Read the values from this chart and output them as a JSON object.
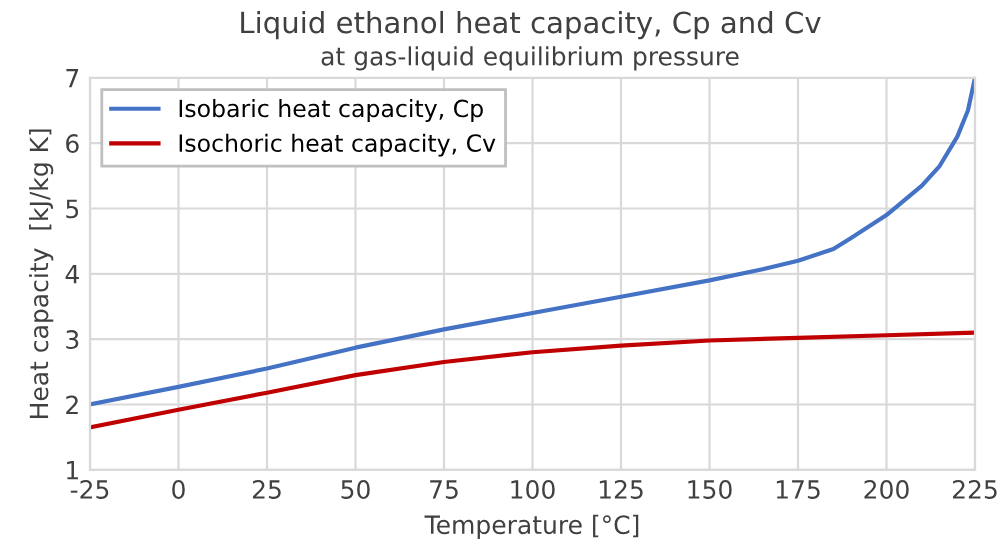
{
  "chart_data": {
    "type": "line",
    "title": "Liquid ethanol heat capacity, Cp and Cv",
    "subtitle": "at gas-liquid equilibrium pressure",
    "xlabel": "Temperature [°C]",
    "ylabel": "Heat capacity  [kJ/kg K]",
    "series": [
      {
        "name": "Isobaric heat capacity, Cp",
        "color": "#4472c4",
        "x": [
          -25,
          0,
          25,
          50,
          75,
          100,
          125,
          150,
          165,
          175,
          185,
          190,
          200,
          210,
          215,
          220,
          223,
          225
        ],
        "values": [
          2.0,
          2.27,
          2.55,
          2.87,
          3.15,
          3.4,
          3.65,
          3.9,
          4.07,
          4.2,
          4.38,
          4.55,
          4.9,
          5.35,
          5.65,
          6.1,
          6.5,
          7.0
        ]
      },
      {
        "name": "Isochoric heat capacity, Cv",
        "color": "#c00000",
        "x": [
          -25,
          0,
          25,
          50,
          75,
          100,
          125,
          150,
          175,
          200,
          225
        ],
        "values": [
          1.65,
          1.92,
          2.18,
          2.45,
          2.65,
          2.8,
          2.9,
          2.98,
          3.02,
          3.06,
          3.1
        ]
      }
    ],
    "xlim": [
      -25,
      225
    ],
    "xticks": [
      -25,
      0,
      25,
      50,
      75,
      100,
      125,
      150,
      175,
      200,
      225
    ],
    "ylim": [
      1,
      7
    ],
    "yticks": [
      1,
      2,
      3,
      4,
      5,
      6,
      7
    ],
    "grid": true,
    "legend": "top left",
    "marker": "none",
    "line_style": "solid"
  }
}
